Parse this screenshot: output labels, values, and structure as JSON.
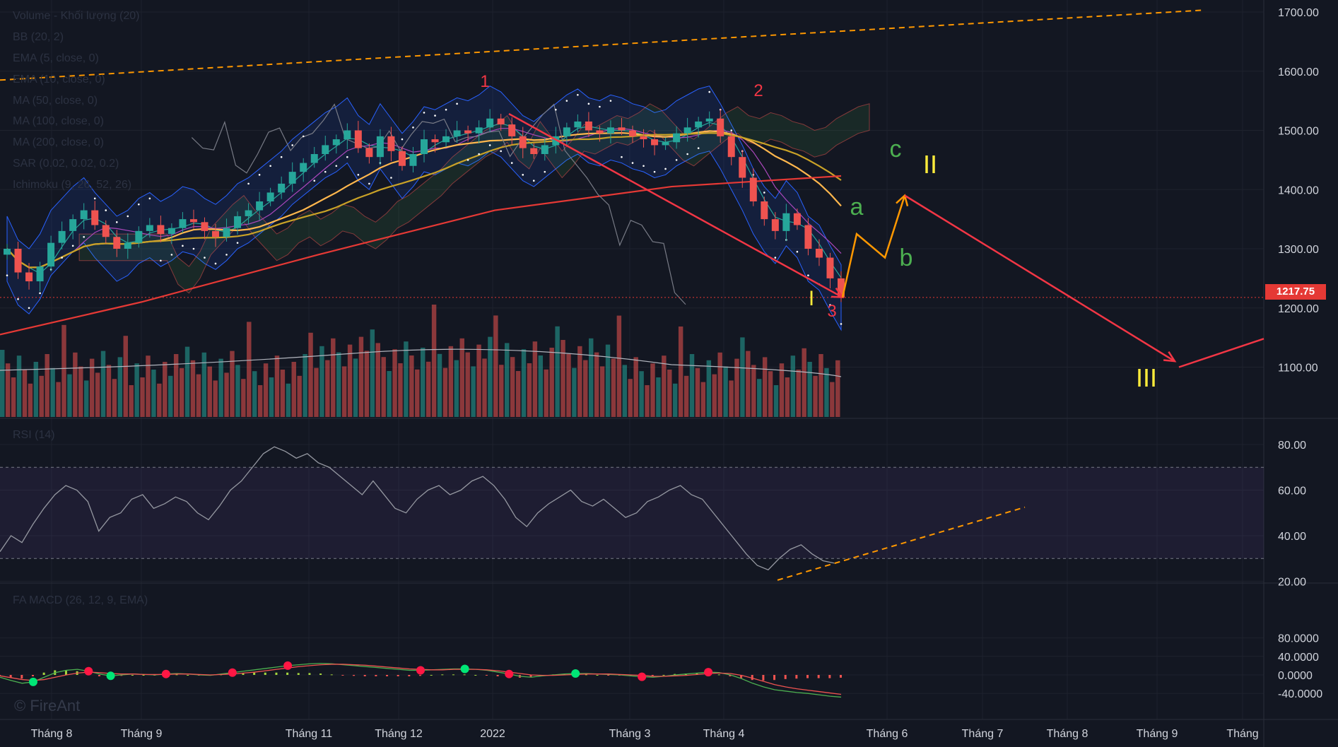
{
  "legend": {
    "volume": "Volume - Khối lượng (20)",
    "bb": "BB (20, 2)",
    "ema5": "EMA (5, close, 0)",
    "ema10": "EMA (10, close, 0)",
    "ma50": "MA (50, close, 0)",
    "ma100": "MA (100, close, 0)",
    "ma200": "MA (200, close, 0)",
    "sar": "SAR (0.02, 0.02, 0.2)",
    "ichimoku": "Ichimoku (9, 26, 52, 26)",
    "rsi": "RSI (14)",
    "macd": "FA MACD (26, 12, 9, EMA)"
  },
  "watermark": "© FireAnt",
  "price_tag": "1217.75",
  "colors": {
    "background": "#131722",
    "up": "#26a69a",
    "down": "#ef5350",
    "wave_red": "#f23645",
    "wave_orange": "#ff9800",
    "wave_green": "#4caf50",
    "wave_yellow": "#ffeb3b"
  },
  "chart_data": [
    {
      "type": "candlestick",
      "name": "price",
      "y_ticks": [
        "1700.00",
        "1600.00",
        "1500.00",
        "1400.00",
        "1300.00",
        "1200.00",
        "1100.00"
      ],
      "ylim": [
        1000,
        1730
      ],
      "x_ticks": [
        "Tháng 8",
        "Tháng 9",
        "Tháng 11",
        "Tháng 12",
        "2022",
        "Tháng 3",
        "Tháng 4",
        "Tháng 6",
        "Tháng 7",
        "Tháng 8",
        "Tháng 9",
        "Tháng"
      ],
      "last_price": 1217.75,
      "close_series": [
        1300,
        1260,
        1245,
        1270,
        1310,
        1330,
        1350,
        1365,
        1340,
        1320,
        1300,
        1310,
        1330,
        1340,
        1325,
        1335,
        1350,
        1345,
        1330,
        1320,
        1335,
        1355,
        1365,
        1380,
        1395,
        1410,
        1430,
        1445,
        1460,
        1475,
        1485,
        1500,
        1470,
        1455,
        1490,
        1465,
        1440,
        1460,
        1485,
        1480,
        1490,
        1500,
        1495,
        1505,
        1520,
        1510,
        1490,
        1470,
        1460,
        1475,
        1490,
        1505,
        1515,
        1500,
        1495,
        1505,
        1500,
        1490,
        1485,
        1475,
        1480,
        1495,
        1505,
        1515,
        1520,
        1490,
        1455,
        1420,
        1380,
        1350,
        1330,
        1360,
        1340,
        1300,
        1285,
        1250,
        1218
      ],
      "wave_labels": [
        "1",
        "2",
        "3",
        "I",
        "a",
        "b",
        "c",
        "II",
        "III"
      ]
    },
    {
      "type": "bar",
      "name": "Volume - Khối lượng (20)"
    },
    {
      "type": "line",
      "name": "RSI (14)",
      "y_ticks": [
        "80.00",
        "60.00",
        "40.00",
        "20.00"
      ],
      "ylim": [
        19,
        86
      ],
      "bands": [
        30,
        70
      ],
      "values": [
        33,
        40,
        37,
        45,
        52,
        58,
        62,
        60,
        55,
        42,
        48,
        50,
        56,
        58,
        52,
        54,
        57,
        55,
        50,
        47,
        53,
        60,
        64,
        70,
        76,
        79,
        77,
        74,
        76,
        72,
        70,
        66,
        62,
        58,
        64,
        58,
        52,
        50,
        56,
        60,
        62,
        58,
        60,
        64,
        66,
        62,
        56,
        48,
        44,
        50,
        54,
        57,
        60,
        55,
        53,
        56,
        52,
        48,
        50,
        55,
        57,
        60,
        62,
        58,
        56,
        50,
        44,
        38,
        32,
        27,
        25,
        30,
        34,
        36,
        32,
        29,
        28
      ]
    },
    {
      "type": "line",
      "name": "FA MACD (26, 12, 9, EMA)",
      "y_ticks": [
        "80.0000",
        "40.0000",
        "0.0000",
        "-40.0000"
      ],
      "ylim": [
        -48,
        92
      ],
      "macd": [
        -5,
        -12,
        -18,
        -15,
        -5,
        5,
        10,
        12,
        8,
        2,
        -2,
        0,
        2,
        1,
        0,
        2,
        3,
        2,
        0,
        -1,
        2,
        5,
        8,
        11,
        14,
        17,
        20,
        22,
        24,
        25,
        24,
        22,
        20,
        18,
        16,
        14,
        12,
        10,
        10,
        11,
        12,
        13,
        13,
        12,
        10,
        6,
        2,
        -3,
        -5,
        -2,
        0,
        2,
        3,
        3,
        2,
        1,
        0,
        -2,
        -4,
        -5,
        -3,
        0,
        2,
        4,
        6,
        5,
        0,
        -8,
        -18,
        -26,
        -32,
        -35,
        -38,
        -40,
        -43,
        -46,
        -48
      ],
      "signal": [
        -2,
        -6,
        -10,
        -12,
        -10,
        -5,
        0,
        4,
        6,
        5,
        3,
        2,
        2,
        1,
        1,
        1,
        2,
        2,
        1,
        0,
        1,
        2,
        4,
        6,
        9,
        12,
        15,
        18,
        20,
        22,
        23,
        23,
        22,
        21,
        19,
        17,
        15,
        13,
        12,
        11,
        11,
        12,
        12,
        12,
        11,
        9,
        6,
        3,
        0,
        -1,
        -1,
        0,
        1,
        2,
        2,
        2,
        1,
        0,
        -1,
        -3,
        -3,
        -2,
        -1,
        1,
        3,
        4,
        3,
        -1,
        -7,
        -14,
        -21,
        -26,
        -30,
        -33,
        -36,
        -39,
        -42
      ]
    }
  ]
}
